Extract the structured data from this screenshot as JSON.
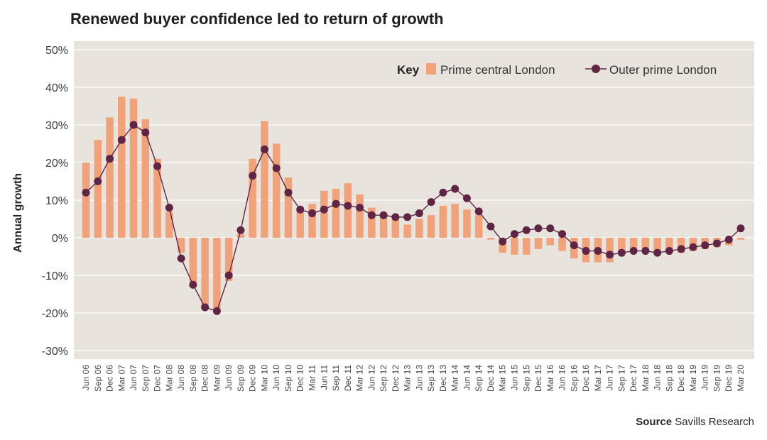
{
  "title": "Renewed buyer confidence led to return of growth",
  "source": {
    "label": "Source",
    "text": "Savills Research"
  },
  "chart_data": {
    "type": "bar+line",
    "ylabel": "Annual growth",
    "ylim": [
      -30,
      50
    ],
    "yticks": [
      -30,
      -20,
      -10,
      0,
      10,
      20,
      30,
      40,
      50
    ],
    "ytick_labels": [
      "-30%",
      "-20%",
      "-10%",
      "0%",
      "10%",
      "20%",
      "30%",
      "40%",
      "50%"
    ],
    "categories": [
      "Jun 06",
      "Sep 06",
      "Dec 06",
      "Mar 07",
      "Jun 07",
      "Sep 07",
      "Dec 07",
      "Mar 08",
      "Jun 08",
      "Sep 08",
      "Dec 08",
      "Mar 09",
      "Jun 09",
      "Sep 09",
      "Dec 09",
      "Mar 10",
      "Jun 10",
      "Sep 10",
      "Dec 10",
      "Mar 11",
      "Jun 11",
      "Sep 11",
      "Dec 11",
      "Mar 12",
      "Jun 12",
      "Sep 12",
      "Dec 12",
      "Mar 13",
      "Jun 13",
      "Sep 13",
      "Dec 13",
      "Mar 14",
      "Jun 14",
      "Sep 14",
      "Dec 14",
      "Mar 15",
      "Jun 15",
      "Sep 15",
      "Dec 15",
      "Mar 16",
      "Jun 16",
      "Sep 16",
      "Dec 16",
      "Mar 17",
      "Jun 17",
      "Sep 17",
      "Dec 17",
      "Mar 18",
      "Jun 18",
      "Sep 18",
      "Dec 18",
      "Mar 19",
      "Jun 19",
      "Sep 19",
      "Dec 19",
      "Mar 20"
    ],
    "legend": {
      "key_label": "Key",
      "position": "top-right"
    },
    "series": [
      {
        "name": "Prime central London",
        "kind": "bar",
        "color": "#f0a27a",
        "values": [
          20,
          26,
          32,
          37.5,
          37,
          31.5,
          21,
          7,
          -4,
          -12,
          -19,
          -19,
          -11.5,
          1,
          21,
          31,
          25,
          16,
          8,
          9,
          12.5,
          13,
          14.5,
          11.5,
          8,
          6,
          5.5,
          3.5,
          5,
          6,
          8.5,
          9,
          7.5,
          6,
          -0.5,
          -4,
          -4.5,
          -4.5,
          -3,
          -2,
          -3.5,
          -5.5,
          -6.5,
          -6.5,
          -6.5,
          -4,
          -3,
          -3,
          -3.5,
          -3.5,
          -4,
          -3.5,
          -3,
          -2.5,
          -2,
          -0.5
        ]
      },
      {
        "name": "Outer prime London",
        "kind": "line",
        "color": "#5e2545",
        "values": [
          12,
          15,
          21,
          26,
          30,
          28,
          19,
          8,
          -5.5,
          -12.5,
          -18.5,
          -19.5,
          -10,
          2,
          16.5,
          23.5,
          18.5,
          12,
          7.5,
          6.5,
          7.5,
          9,
          8.5,
          8,
          6,
          6,
          5.5,
          5.5,
          6.5,
          9.5,
          12,
          13,
          10.5,
          7,
          3,
          -1,
          1,
          2,
          2.5,
          2.5,
          1,
          -2,
          -3.5,
          -3.5,
          -4.5,
          -4,
          -3.5,
          -3.5,
          -4,
          -3.5,
          -3,
          -2.5,
          -2,
          -1.5,
          -0.5,
          2.5
        ]
      }
    ]
  },
  "colors": {
    "plot_bg": "#e8e3dc",
    "grid": "#ffffff",
    "bar": "#f0a27a",
    "line": "#5e2545"
  }
}
